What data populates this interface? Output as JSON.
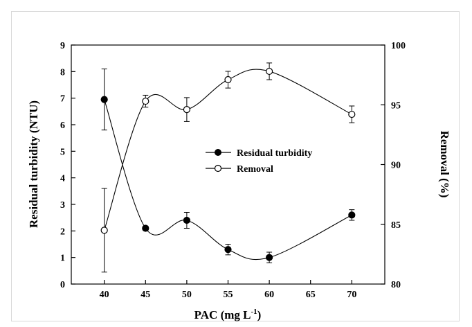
{
  "chart_data": {
    "type": "scatter",
    "xlabel": "PAC (mg L",
    "xlabel_sup": "-1",
    "xlabel_end": ")",
    "ylabel_left": "Residual turbidity (NTU)",
    "ylabel_right": "Removal (%)",
    "xlim": [
      36,
      74
    ],
    "ylim_left": [
      0,
      9
    ],
    "ylim_right": [
      80,
      100
    ],
    "x_ticks": [
      "40",
      "45",
      "50",
      "55",
      "60",
      "65",
      "70"
    ],
    "y_left_ticks": [
      "0",
      "1",
      "2",
      "3",
      "4",
      "5",
      "6",
      "7",
      "8",
      "9"
    ],
    "y_right_ticks": [
      "80",
      "85",
      "90",
      "95",
      "100"
    ],
    "legend_position": "center-right",
    "grid": false,
    "series": [
      {
        "name": "Residual turbidity",
        "axis": "left",
        "marker": "filled-circle",
        "x": [
          40,
          45,
          50,
          55,
          60,
          70
        ],
        "y": [
          6.95,
          2.1,
          2.4,
          1.3,
          1.0,
          2.6
        ],
        "err": [
          1.15,
          0.08,
          0.3,
          0.2,
          0.2,
          0.2
        ]
      },
      {
        "name": "Removal",
        "axis": "right",
        "marker": "open-circle",
        "x": [
          40,
          45,
          50,
          55,
          60,
          70
        ],
        "y": [
          84.5,
          95.3,
          94.6,
          97.1,
          97.8,
          94.2
        ],
        "err": [
          3.5,
          0.5,
          1.0,
          0.7,
          0.7,
          0.7
        ]
      }
    ]
  }
}
